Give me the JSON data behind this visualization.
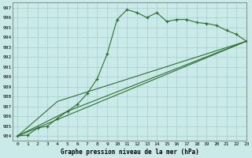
{
  "title": "Graphe pression niveau de la mer (hPa)",
  "bg_color": "#caeaea",
  "grid_color": "#aacccc",
  "line_color": "#2d6e2d",
  "xlim": [
    -0.5,
    23
  ],
  "ylim": [
    983.5,
    997.5
  ],
  "yticks": [
    984,
    985,
    986,
    987,
    988,
    989,
    990,
    991,
    992,
    993,
    994,
    995,
    996,
    997
  ],
  "xticks": [
    0,
    1,
    2,
    3,
    4,
    5,
    6,
    7,
    8,
    9,
    10,
    11,
    12,
    13,
    14,
    15,
    16,
    17,
    18,
    19,
    20,
    21,
    22,
    23
  ],
  "series": [
    {
      "x": [
        0,
        1,
        2,
        3,
        4,
        5,
        6,
        7,
        8,
        9,
        10,
        11,
        12,
        13,
        14,
        15,
        16,
        17,
        18,
        19,
        20,
        21,
        22,
        23
      ],
      "y": [
        984.0,
        984.1,
        984.8,
        985.0,
        985.8,
        986.5,
        987.2,
        988.3,
        989.8,
        992.3,
        995.8,
        996.8,
        996.5,
        996.0,
        996.5,
        995.6,
        995.8,
        995.8,
        995.5,
        995.4,
        995.2,
        994.7,
        994.3,
        993.6
      ],
      "marker": true
    },
    {
      "x": [
        0,
        23
      ],
      "y": [
        984.0,
        993.6
      ],
      "marker": false
    },
    {
      "x": [
        0,
        5,
        23
      ],
      "y": [
        984.0,
        986.5,
        993.6
      ],
      "marker": false
    },
    {
      "x": [
        0,
        4,
        23
      ],
      "y": [
        984.0,
        987.5,
        993.6
      ],
      "marker": false
    }
  ]
}
